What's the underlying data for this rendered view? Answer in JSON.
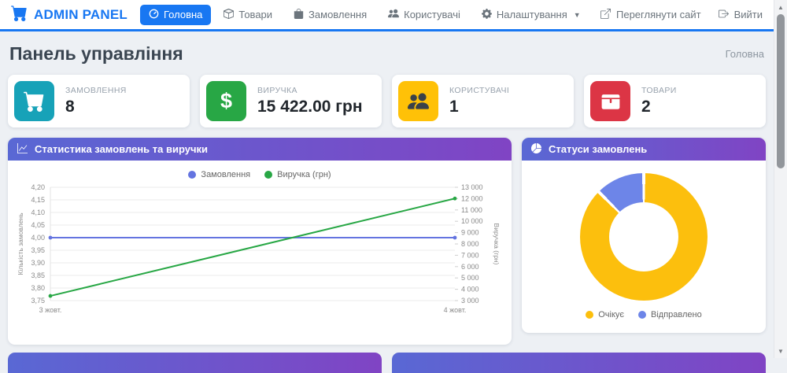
{
  "theme": {
    "primary": "#1877f2",
    "header_gradient_start": "#5968d4",
    "header_gradient_end": "#8044c4"
  },
  "navbar": {
    "brand": "ADMIN PANEL",
    "items": [
      {
        "label": "Головна",
        "icon": "speedometer-icon",
        "active": true
      },
      {
        "label": "Товари",
        "icon": "box-icon",
        "active": false
      },
      {
        "label": "Замовлення",
        "icon": "bag-icon",
        "active": false
      },
      {
        "label": "Користувачі",
        "icon": "people-icon",
        "active": false
      },
      {
        "label": "Налаштування",
        "icon": "gear-icon",
        "active": false,
        "has_dropdown": true
      }
    ],
    "right_items": [
      {
        "label": "Переглянути сайт",
        "icon": "external-link-icon"
      },
      {
        "label": "Вийти",
        "icon": "logout-icon"
      }
    ]
  },
  "page": {
    "title": "Панель управління",
    "breadcrumb": "Головна"
  },
  "stats": [
    {
      "label": "ЗАМОВЛЕННЯ",
      "value": "8",
      "icon": "cart-icon",
      "color": "#17a2b8"
    },
    {
      "label": "ВИРУЧКА",
      "value": "15 422.00 грн",
      "icon": "dollar-icon",
      "color": "#28a745"
    },
    {
      "label": "КОРИСТУВАЧІ",
      "value": "1",
      "icon": "people-icon",
      "color": "#ffc107"
    },
    {
      "label": "ТОВАРИ",
      "value": "2",
      "icon": "box-icon",
      "color": "#dc3545"
    }
  ],
  "chart_data": [
    {
      "type": "line",
      "title": "Статистика замовлень та виручки",
      "x": [
        "3 жовт.",
        "4 жовт."
      ],
      "series": [
        {
          "name": "Замовлення",
          "axis": "left",
          "color": "#6474e0",
          "values": [
            4,
            4
          ]
        },
        {
          "name": "Виручка (грн)",
          "axis": "right",
          "color": "#28a745",
          "values": [
            3411,
            12011
          ]
        }
      ],
      "left_axis": {
        "label": "Кількість замовлень",
        "min": 3.75,
        "max": 4.2,
        "ticks": [
          "4,20",
          "4,15",
          "4,10",
          "4,05",
          "4,00",
          "3,95",
          "3,90",
          "3,85",
          "3,80",
          "3,75"
        ]
      },
      "right_axis": {
        "label": "Виручка (грн)",
        "min": 3000,
        "max": 13000,
        "ticks": [
          "13 000",
          "12 000",
          "11 000",
          "10 000",
          "9 000",
          "8 000",
          "7 000",
          "6 000",
          "5 000",
          "4 000",
          "3 000"
        ]
      },
      "grid": true,
      "legend_position": "top"
    },
    {
      "type": "pie",
      "donut": true,
      "title": "Статуси замовлень",
      "labels": [
        "Очікує",
        "Відправлено"
      ],
      "values": [
        7,
        1
      ],
      "colors": [
        "#fcbf0d",
        "#6d85e8"
      ],
      "legend_position": "bottom"
    }
  ]
}
